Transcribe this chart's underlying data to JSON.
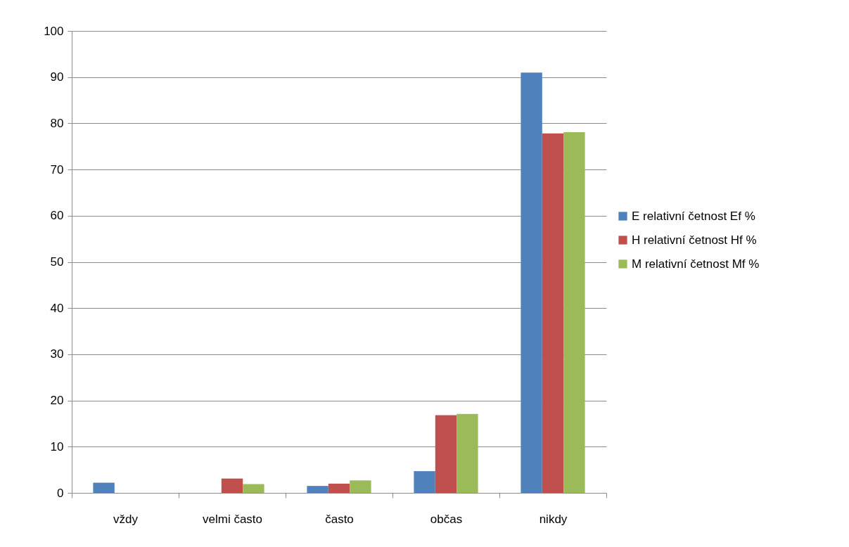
{
  "chart_data": {
    "type": "bar",
    "categories": [
      "vždy",
      "velmi často",
      "často",
      "občas",
      "nikdy"
    ],
    "series": [
      {
        "name": "E relativní četnost Ef %",
        "color": "#4f81bd",
        "values": [
          2.2,
          null,
          1.5,
          4.7,
          91.0
        ]
      },
      {
        "name": "H relativní četnost Hf %",
        "color": "#c0504d",
        "values": [
          null,
          3.1,
          2.0,
          16.8,
          77.8
        ]
      },
      {
        "name": "M relativní četnost Mf %",
        "color": "#9bbb59",
        "values": [
          null,
          1.9,
          2.7,
          17.1,
          78.1
        ]
      }
    ],
    "ylim": [
      0,
      100
    ],
    "yticks": [
      0,
      10,
      20,
      30,
      40,
      50,
      60,
      70,
      80,
      90,
      100
    ],
    "grid": "y",
    "legend": "right"
  }
}
